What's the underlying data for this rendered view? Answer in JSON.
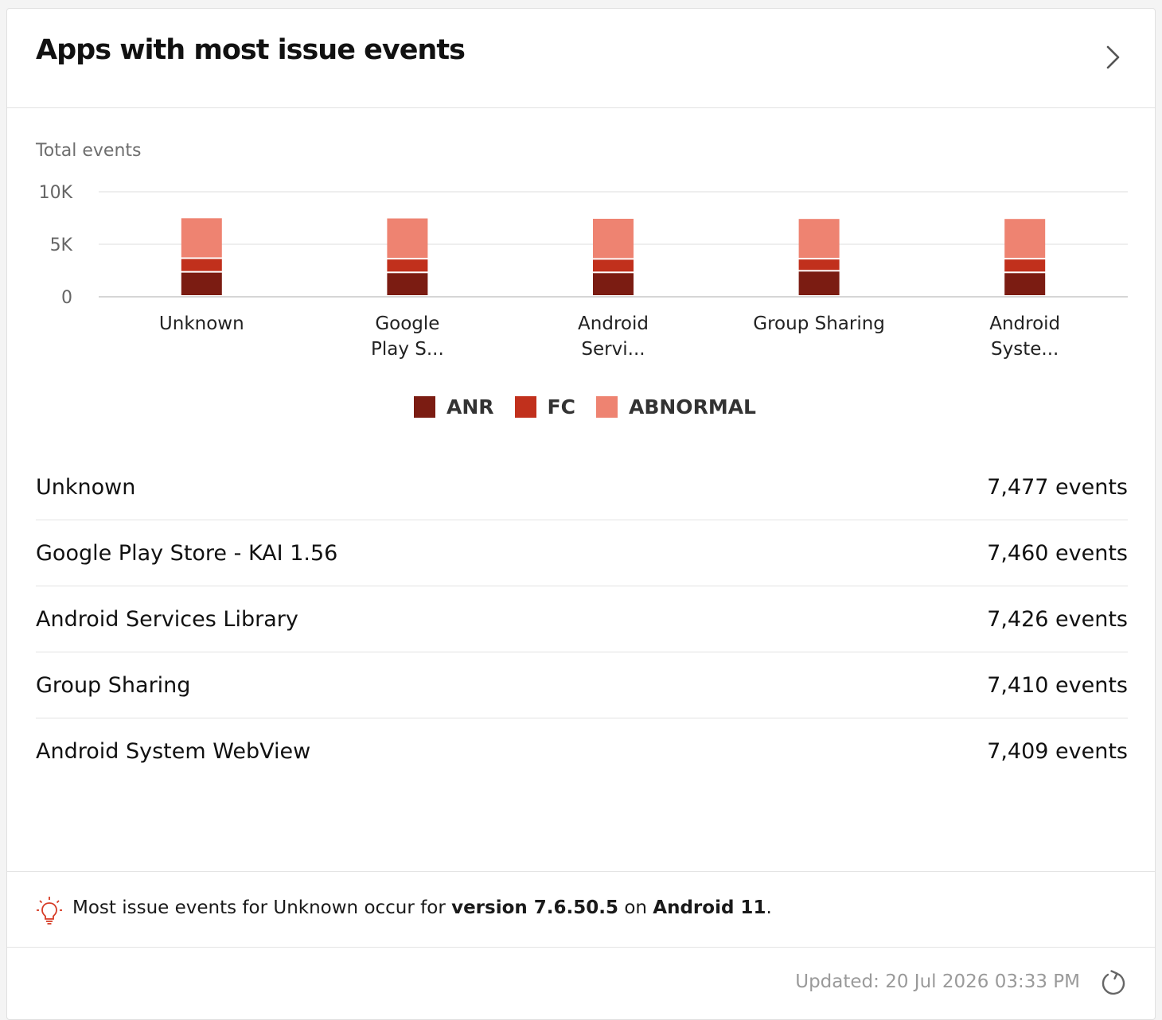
{
  "card": {
    "title": "Apps with most issue events"
  },
  "chart_data": {
    "type": "bar",
    "stacked": true,
    "ylabel": "Total events",
    "ylim": [
      0,
      10000
    ],
    "yticks": [
      "10K",
      "5K",
      "0"
    ],
    "yticks_values": [
      10000,
      5000,
      0
    ],
    "categories": [
      "Unknown",
      "Google Play S...",
      "Android Servi...",
      "Group Sharing",
      "Android Syste..."
    ],
    "category_label_lines": [
      [
        "Unknown"
      ],
      [
        "Google",
        "Play S..."
      ],
      [
        "Android",
        "Servi..."
      ],
      [
        "Group Sharing"
      ],
      [
        "Android",
        "Syste..."
      ]
    ],
    "series": [
      {
        "name": "ANR",
        "color": "#7b1c12",
        "values": [
          2300,
          2250,
          2250,
          2400,
          2250
        ]
      },
      {
        "name": "FC",
        "color": "#c1301c",
        "values": [
          1300,
          1300,
          1280,
          1150,
          1300
        ]
      },
      {
        "name": "ABNORMAL",
        "color": "#ee8371",
        "values": [
          3877,
          3910,
          3896,
          3860,
          3859
        ]
      }
    ],
    "grid": true,
    "legend_position": "bottom"
  },
  "apps": [
    {
      "name": "Unknown",
      "count": "7,477 events"
    },
    {
      "name": "Google Play Store - KAI 1.56",
      "count": "7,460 events"
    },
    {
      "name": "Android Services Library",
      "count": "7,426 events"
    },
    {
      "name": "Group Sharing",
      "count": "7,410 events"
    },
    {
      "name": "Android System WebView",
      "count": "7,409 events"
    }
  ],
  "insight": {
    "prefix": "Most issue events for Unknown occur for ",
    "version": "version 7.6.50.5",
    "middle": " on ",
    "os": "Android 11",
    "suffix": "."
  },
  "footer": {
    "updated": "Updated: 20 Jul 2026 03:33 PM"
  },
  "icons": {
    "header": "chevron-right-icon",
    "insight": "lightbulb-icon",
    "footer": "refresh-icon"
  },
  "colors": {
    "accent": "#c1301c",
    "grid": "#e6e6e6",
    "muted_text": "#9a9a9a"
  }
}
